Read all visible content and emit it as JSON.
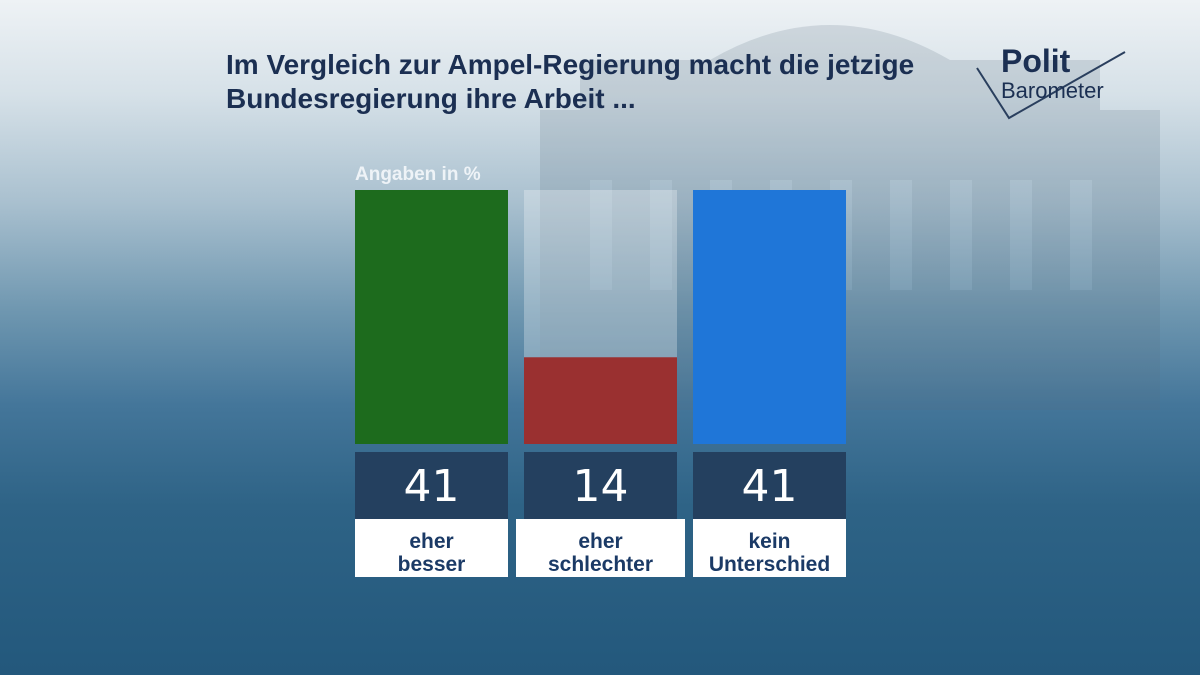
{
  "title": "Im Vergleich zur Ampel-Regierung macht die jetzige Bundesregierung ihre Arbeit ...",
  "logo": {
    "line1": "Polit",
    "line2": "Barometer"
  },
  "chart_data": {
    "type": "bar",
    "unit_label": "Angaben in %",
    "ylim": [
      0,
      41
    ],
    "categories": [
      {
        "lines": [
          "eher",
          "besser"
        ],
        "value": 41,
        "color": "#1d6b1d"
      },
      {
        "lines": [
          "eher",
          "schlechter"
        ],
        "value": 14,
        "color": "#9a3030"
      },
      {
        "lines": [
          "kein",
          "Unterschied"
        ],
        "value": 41,
        "color": "#1f76d8"
      }
    ]
  }
}
